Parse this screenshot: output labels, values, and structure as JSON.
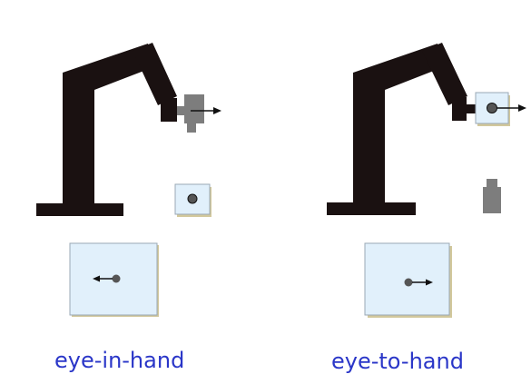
{
  "captions": {
    "left": "eye-in-hand",
    "right": "eye-to-hand"
  },
  "colors": {
    "robot": "#1a1111",
    "camera": "#7d7d7d",
    "target_fill": "#e1f0fb",
    "target_border": "#9aa8b4",
    "target_shadow": "#d2c89c",
    "dot": "#555555",
    "caption": "#2a36c8"
  },
  "icons": [
    "robot-arm-icon",
    "camera-icon",
    "target-icon",
    "arrow-icon"
  ]
}
